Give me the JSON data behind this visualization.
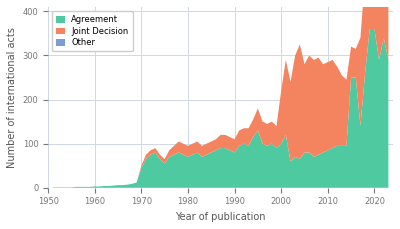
{
  "title": "",
  "xlabel": "Year of publication",
  "ylabel": "Number of international acts",
  "colors": {
    "Agreement": "#4ec9a0",
    "Joint Decision": "#f4845f",
    "Other": "#7b9dd4"
  },
  "legend_labels": [
    "Agreement",
    "Joint Decision",
    "Other"
  ],
  "background_color": "#ffffff",
  "grid_color": "#d0d8e8",
  "xlim": [
    1950,
    2024
  ],
  "ylim": [
    0,
    410
  ],
  "yticks": [
    0,
    100,
    200,
    300,
    400
  ],
  "xticks": [
    1950,
    1960,
    1970,
    1980,
    1990,
    2000,
    2010,
    2020
  ],
  "years": [
    1951,
    1952,
    1953,
    1954,
    1955,
    1956,
    1957,
    1958,
    1959,
    1960,
    1961,
    1962,
    1963,
    1964,
    1965,
    1966,
    1967,
    1968,
    1969,
    1970,
    1971,
    1972,
    1973,
    1974,
    1975,
    1976,
    1977,
    1978,
    1979,
    1980,
    1981,
    1982,
    1983,
    1984,
    1985,
    1986,
    1987,
    1988,
    1989,
    1990,
    1991,
    1992,
    1993,
    1994,
    1995,
    1996,
    1997,
    1998,
    1999,
    2000,
    2001,
    2002,
    2003,
    2004,
    2005,
    2006,
    2007,
    2008,
    2009,
    2010,
    2011,
    2012,
    2013,
    2014,
    2015,
    2016,
    2017,
    2018,
    2019,
    2020,
    2021,
    2022,
    2023
  ],
  "agreement": [
    1,
    1,
    1,
    1,
    1,
    2,
    2,
    2,
    2,
    3,
    3,
    4,
    4,
    5,
    6,
    6,
    7,
    9,
    12,
    45,
    65,
    75,
    80,
    65,
    55,
    70,
    75,
    80,
    75,
    70,
    75,
    80,
    70,
    75,
    80,
    85,
    90,
    90,
    85,
    80,
    95,
    100,
    95,
    115,
    130,
    100,
    95,
    100,
    90,
    100,
    120,
    60,
    70,
    65,
    80,
    80,
    70,
    75,
    80,
    85,
    90,
    95,
    95,
    95,
    250,
    250,
    140,
    260,
    360,
    360,
    290,
    340,
    290
  ],
  "joint_decision": [
    0,
    0,
    0,
    0,
    0,
    0,
    0,
    0,
    0,
    0,
    0,
    0,
    0,
    0,
    0,
    0,
    0,
    0,
    0,
    5,
    10,
    10,
    10,
    10,
    10,
    15,
    20,
    25,
    25,
    25,
    25,
    25,
    25,
    25,
    25,
    25,
    30,
    30,
    30,
    30,
    35,
    35,
    40,
    40,
    50,
    50,
    50,
    50,
    50,
    120,
    170,
    180,
    230,
    260,
    200,
    220,
    220,
    220,
    200,
    200,
    200,
    180,
    160,
    150,
    70,
    65,
    200,
    220,
    270,
    290,
    210,
    260,
    210
  ],
  "other": [
    0,
    0,
    0,
    0,
    0,
    0,
    0,
    0,
    0,
    0,
    0,
    0,
    0,
    0,
    0,
    0,
    0,
    0,
    0,
    0,
    0,
    0,
    0,
    0,
    0,
    0,
    0,
    0,
    0,
    0,
    0,
    0,
    0,
    0,
    0,
    0,
    0,
    0,
    0,
    0,
    0,
    0,
    0,
    0,
    0,
    0,
    0,
    0,
    0,
    0,
    0,
    0,
    0,
    0,
    0,
    0,
    0,
    0,
    0,
    0,
    0,
    0,
    0,
    0,
    0,
    0,
    0,
    0,
    50,
    5,
    2,
    2,
    2
  ]
}
